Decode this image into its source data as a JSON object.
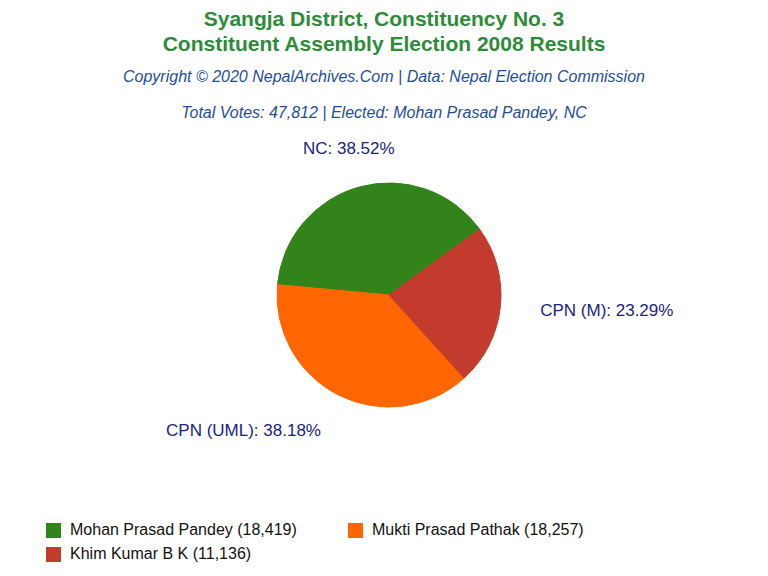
{
  "chart_data": {
    "type": "pie",
    "title": [
      "Syangja District, Constituency No. 3",
      "Constituent Assembly Election 2008 Results"
    ],
    "source": "Copyright © 2020 NepalArchives.Com | Data: Nepal Election Commission",
    "subtitle": "Total Votes: 47,812 | Elected: Mohan Prasad Pandey, NC",
    "categories": [
      "NC",
      "CPN (UML)",
      "CPN (M)"
    ],
    "values": [
      38.52,
      38.18,
      23.29
    ],
    "value_labels": [
      "NC: 38.52%",
      "CPN (UML): 38.18%",
      "CPN (M): 23.29%"
    ],
    "colors": [
      "#31831a",
      "#ff6600",
      "#c23b2c"
    ],
    "data_labels": true,
    "legend": "bottom",
    "series": [
      {
        "name": "Mohan Prasad Pandey",
        "votes": 18419,
        "color": "#31831a"
      },
      {
        "name": "Mukti Prasad Pathak",
        "votes": 18257,
        "color": "#ff6600"
      },
      {
        "name": "Khim Kumar B K",
        "votes": 11136,
        "color": "#c23b2c"
      }
    ]
  }
}
